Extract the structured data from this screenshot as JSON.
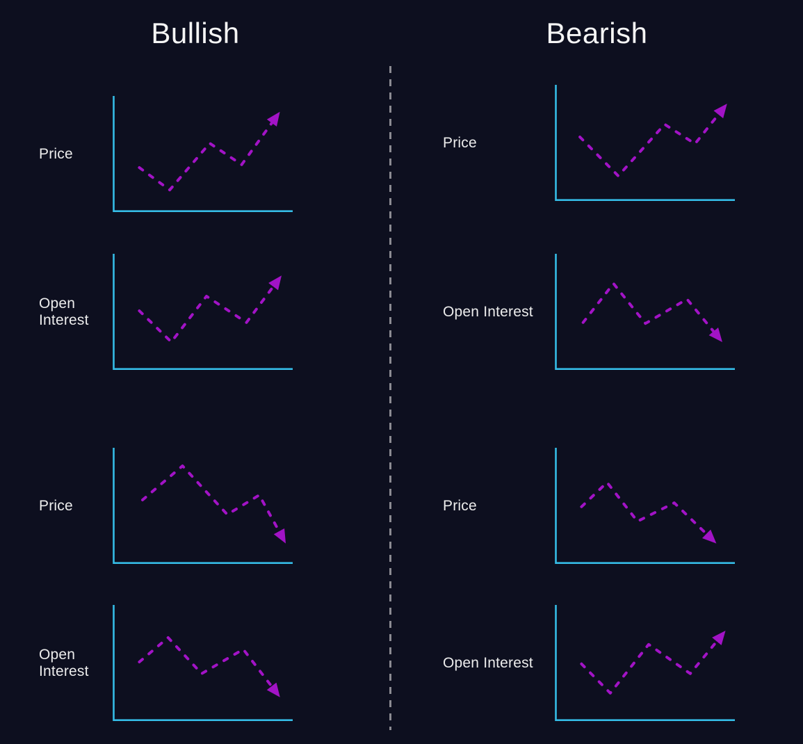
{
  "page": {
    "background": "#0d0f1f"
  },
  "colors": {
    "axis": "#35bce6",
    "line": "#a213c6",
    "divider": "#8b8b92",
    "text": "#f2f2f2"
  },
  "columns": [
    {
      "title": "Bullish"
    },
    {
      "title": "Bearish"
    }
  ],
  "chart_data": [
    {
      "column": "Bullish",
      "label": "Price",
      "type": "line",
      "trend": "up",
      "style": "dashed-with-arrow",
      "xlabel": "",
      "ylabel": "Price",
      "points_pct": [
        [
          8,
          35
        ],
        [
          27,
          12
        ],
        [
          52,
          60
        ],
        [
          72,
          38
        ],
        [
          94,
          88
        ]
      ]
    },
    {
      "column": "Bullish",
      "label": "Open Interest",
      "type": "line",
      "trend": "up",
      "style": "dashed-with-arrow",
      "xlabel": "",
      "ylabel": "Open Interest",
      "points_pct": [
        [
          8,
          50
        ],
        [
          28,
          18
        ],
        [
          50,
          65
        ],
        [
          75,
          38
        ],
        [
          95,
          82
        ]
      ]
    },
    {
      "column": "Bullish",
      "label": "Price",
      "type": "line",
      "trend": "down",
      "style": "dashed-with-arrow",
      "xlabel": "",
      "ylabel": "Price",
      "points_pct": [
        [
          10,
          55
        ],
        [
          35,
          90
        ],
        [
          63,
          40
        ],
        [
          83,
          60
        ],
        [
          98,
          15
        ]
      ]
    },
    {
      "column": "Bullish",
      "label": "Open Interest",
      "type": "line",
      "trend": "down",
      "style": "dashed-with-arrow",
      "xlabel": "",
      "ylabel": "Open Interest",
      "points_pct": [
        [
          8,
          50
        ],
        [
          26,
          75
        ],
        [
          47,
          38
        ],
        [
          73,
          63
        ],
        [
          94,
          18
        ]
      ]
    },
    {
      "column": "Bearish",
      "label": "Price",
      "type": "line",
      "trend": "up",
      "style": "dashed-with-arrow",
      "xlabel": "",
      "ylabel": "Price",
      "points_pct": [
        [
          7,
          55
        ],
        [
          31,
          15
        ],
        [
          60,
          68
        ],
        [
          79,
          48
        ],
        [
          97,
          85
        ]
      ]
    },
    {
      "column": "Bearish",
      "label": "Open Interest",
      "type": "line",
      "trend": "down",
      "style": "dashed-with-arrow",
      "xlabel": "",
      "ylabel": "Open Interest",
      "points_pct": [
        [
          9,
          38
        ],
        [
          28,
          78
        ],
        [
          48,
          37
        ],
        [
          74,
          62
        ],
        [
          94,
          22
        ]
      ]
    },
    {
      "column": "Bearish",
      "label": "Price",
      "type": "line",
      "trend": "down",
      "style": "dashed-with-arrow",
      "xlabel": "",
      "ylabel": "Price",
      "points_pct": [
        [
          8,
          48
        ],
        [
          24,
          73
        ],
        [
          43,
          33
        ],
        [
          66,
          52
        ],
        [
          90,
          14
        ]
      ]
    },
    {
      "column": "Bearish",
      "label": "Open Interest",
      "type": "line",
      "trend": "up",
      "style": "dashed-with-arrow",
      "xlabel": "",
      "ylabel": "Open Interest",
      "points_pct": [
        [
          8,
          48
        ],
        [
          26,
          18
        ],
        [
          50,
          68
        ],
        [
          76,
          38
        ],
        [
          96,
          78
        ]
      ]
    }
  ]
}
